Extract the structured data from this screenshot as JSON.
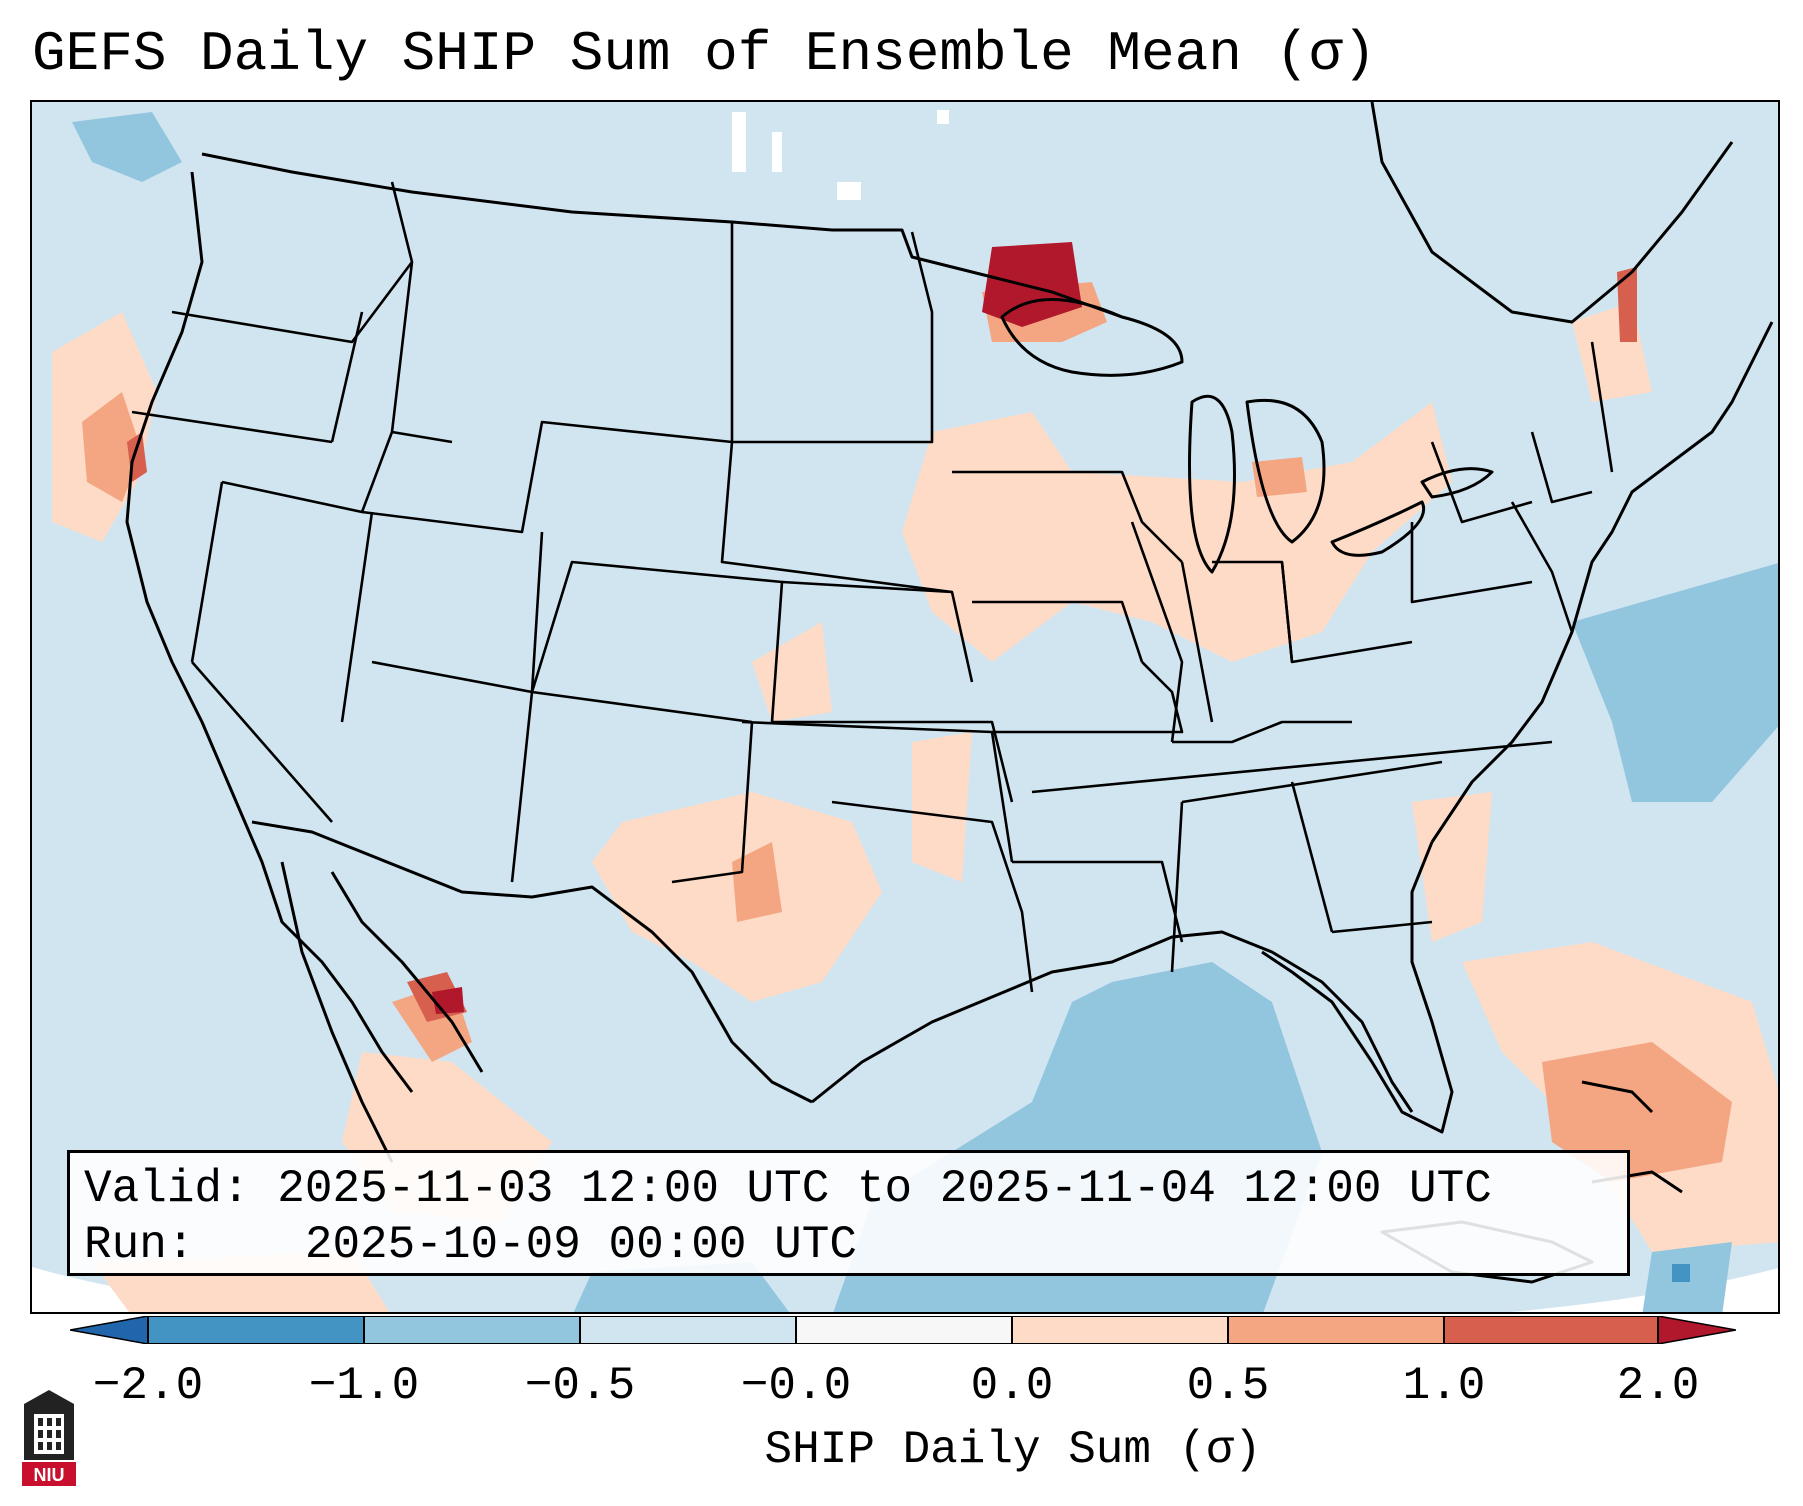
{
  "title": "GEFS Daily SHIP Sum of Ensemble Mean (σ)",
  "info": {
    "valid_label": "Valid:",
    "valid_value": "2025-11-03 12:00 UTC to 2025-11-04 12:00 UTC",
    "run_label": "Run:",
    "run_value": "2025-10-09 00:00 UTC"
  },
  "colorbar": {
    "label": "SHIP Daily Sum (σ)",
    "ticks": [
      "−2.0",
      "−1.0",
      "−0.5",
      "−0.0",
      "0.0",
      "0.5",
      "1.0",
      "2.0"
    ],
    "bins": [
      {
        "from": -2.0,
        "to": -1.0,
        "color": "#4393c3"
      },
      {
        "from": -1.0,
        "to": -0.5,
        "color": "#92c5de"
      },
      {
        "from": -0.5,
        "to": -0.0,
        "color": "#d1e5f0"
      },
      {
        "from": -0.0,
        "to": 0.0,
        "color": "#f7f7f7"
      },
      {
        "from": 0.0,
        "to": 0.5,
        "color": "#fddbc7"
      },
      {
        "from": 0.5,
        "to": 1.0,
        "color": "#f4a582"
      },
      {
        "from": 1.0,
        "to": 2.0,
        "color": "#d6604d"
      }
    ],
    "under_color": "#2166ac",
    "over_color": "#b2182b"
  },
  "map": {
    "background_color": "#d1e5f0",
    "region": "Continental United States",
    "highlights": [
      {
        "area": "Northern Minnesota / Lake Superior",
        "level": "over"
      },
      {
        "area": "Gulf of California",
        "level": "high"
      },
      {
        "area": "Northern California coast",
        "level": "moderate"
      },
      {
        "area": "Bahamas / Florida Straits",
        "level": "moderate"
      },
      {
        "area": "Gulf of Mexico",
        "level": "low"
      },
      {
        "area": "Western Atlantic",
        "level": "low"
      }
    ]
  },
  "logo": {
    "text": "NIU",
    "icon": "niu-building-icon"
  }
}
